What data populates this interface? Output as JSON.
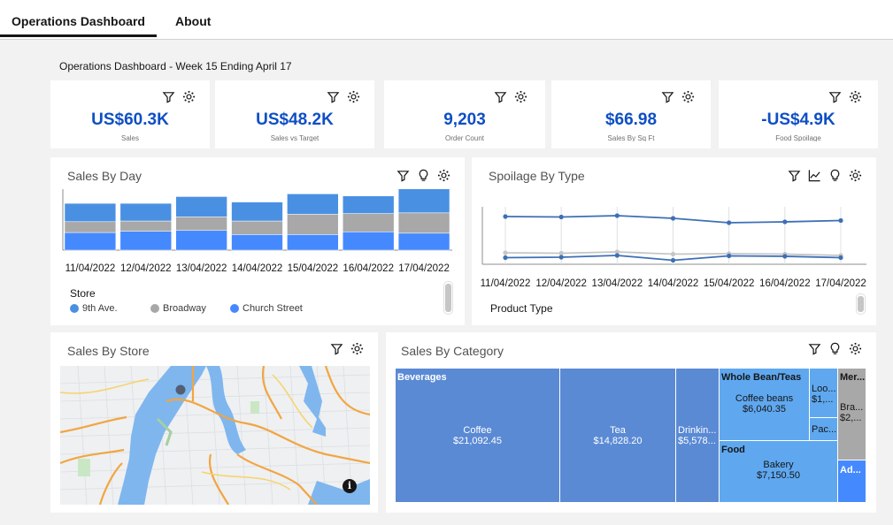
{
  "tabs": [
    {
      "label": "Operations Dashboard",
      "active": true
    },
    {
      "label": "About",
      "active": false
    }
  ],
  "dashboard_title": "Operations Dashboard - Week 15 Ending April 17",
  "kpis": [
    {
      "value": "US$60.3K",
      "label": "Sales"
    },
    {
      "value": "US$48.2K",
      "label": "Sales vs Target"
    },
    {
      "value": "9,203",
      "label": "Order Count"
    },
    {
      "value": "$66.98",
      "label": "Sales By Sq Ft"
    },
    {
      "value": "-US$4.9K",
      "label": "Food Spoilage"
    }
  ],
  "colors": {
    "kpi_value": "#0f4fc4",
    "series_9th": "#4a90e2",
    "series_broadway": "#a8a8a8",
    "series_church": "#4589ff",
    "treemap_dark": "#5a8ad4",
    "treemap_light": "#5fa8f0"
  },
  "sales_by_day": {
    "title": "Sales By Day",
    "legend_title": "Store",
    "legend": [
      "9th Ave.",
      "Broadway",
      "Church Street"
    ],
    "icons": [
      "filter-icon",
      "lightbulb-icon",
      "settings-icon"
    ]
  },
  "spoilage_by_type": {
    "title": "Spoilage By Type",
    "legend_title": "Product Type",
    "icons": [
      "filter-icon",
      "line-chart-icon",
      "lightbulb-icon",
      "settings-icon"
    ]
  },
  "sales_by_store": {
    "title": "Sales By Store",
    "icons": [
      "filter-icon",
      "settings-icon"
    ]
  },
  "sales_by_category": {
    "title": "Sales By Category",
    "icons": [
      "filter-icon",
      "lightbulb-icon",
      "settings-icon"
    ],
    "cells": {
      "beverages": "Beverages",
      "coffee": "Coffee",
      "coffee_val": "$21,092.45",
      "tea": "Tea",
      "tea_val": "$14,828.20",
      "drinking": "Drinkin...",
      "drinking_val": "$5,578...",
      "whole_bean": "Whole Bean/Teas",
      "coffee_beans": "Coffee beans",
      "coffee_beans_val": "$6,040.35",
      "loose": "Loo...",
      "loose_val": "$1,...",
      "packaged": "Pac...",
      "food": "Food",
      "bakery": "Bakery",
      "bakery_val": "$7,150.50",
      "merch": "Mer...",
      "branded": "Bra...",
      "branded_val": "$2,...",
      "addons": "Ad..."
    }
  },
  "chart_data": [
    {
      "type": "bar",
      "title": "Sales By Day",
      "categories": [
        "11/04/2022",
        "12/04/2022",
        "13/04/2022",
        "14/04/2022",
        "15/04/2022",
        "16/04/2022",
        "17/04/2022"
      ],
      "series": [
        {
          "name": "9th Ave.",
          "values": [
            2700,
            2600,
            3000,
            2800,
            3000,
            2600,
            3800
          ]
        },
        {
          "name": "Broadway",
          "values": [
            1600,
            1500,
            2000,
            2000,
            3000,
            2700,
            3000
          ]
        },
        {
          "name": "Church Street",
          "values": [
            2600,
            2800,
            2900,
            2300,
            2300,
            2700,
            2500
          ]
        }
      ],
      "ylim": [
        0,
        9000
      ],
      "grid": false
    },
    {
      "type": "line",
      "title": "Spoilage By Type",
      "x": [
        "11/04/2022",
        "12/04/2022",
        "13/04/2022",
        "14/04/2022",
        "15/04/2022",
        "16/04/2022",
        "17/04/2022"
      ],
      "series": [
        {
          "values": [
            1080,
            1070,
            1100,
            1040,
            940,
            960,
            990
          ]
        },
        {
          "values": [
            260,
            250,
            280,
            230,
            240,
            230,
            200
          ]
        },
        {
          "values": [
            150,
            160,
            200,
            90,
            190,
            180,
            150
          ]
        }
      ],
      "ylim": [
        0,
        1300
      ],
      "grid": true
    }
  ]
}
